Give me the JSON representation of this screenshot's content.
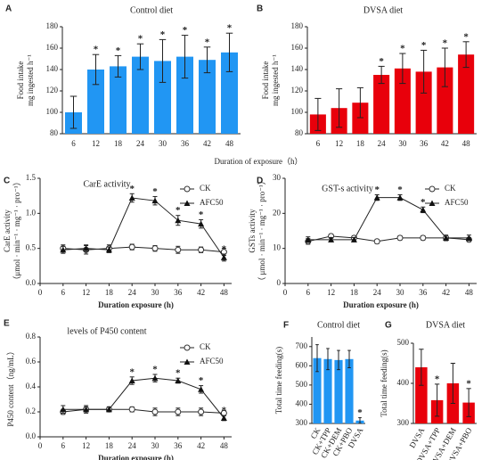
{
  "chart_data": [
    {
      "type": "bar",
      "panel": "A",
      "title": "Control diet",
      "ylabel": [
        "Food intake",
        "mg ingested h⁻¹"
      ],
      "categories": [
        "6",
        "12",
        "18",
        "24",
        "30",
        "36",
        "42",
        "48"
      ],
      "values": [
        100,
        140,
        143,
        152,
        148,
        152,
        149,
        156
      ],
      "errors": [
        15,
        14,
        10,
        12,
        20,
        20,
        12,
        18
      ],
      "color": "#2196f3",
      "ylim": [
        80,
        180
      ],
      "yticks": [
        80,
        100,
        120,
        140,
        160,
        180
      ],
      "stars": [
        null,
        "*",
        "*",
        "*",
        "*",
        "*",
        "*",
        "*"
      ]
    },
    {
      "type": "bar",
      "panel": "B",
      "title": "DVSA diet",
      "ylabel": [
        "Food intake",
        "mg ingested h⁻¹"
      ],
      "xlabel": "Duration of exposure（h）",
      "categories": [
        "6",
        "12",
        "18",
        "24",
        "30",
        "36",
        "42",
        "48"
      ],
      "values": [
        98,
        104,
        109,
        135,
        141,
        138,
        142,
        154
      ],
      "errors": [
        15,
        18,
        14,
        8,
        14,
        20,
        18,
        12
      ],
      "color": "#e8000b",
      "ylim": [
        80,
        180
      ],
      "yticks": [
        80,
        100,
        120,
        140,
        160,
        180
      ],
      "stars": [
        null,
        null,
        null,
        "*",
        "*",
        "*",
        "*",
        "*"
      ]
    },
    {
      "type": "line",
      "panel": "C",
      "title": "CarE activity",
      "ylabel": [
        "CarE activity",
        "（μmol · min⁻¹ · mg⁻¹ · pro⁻¹）"
      ],
      "xlabel": "Duration exposure (h)",
      "x": [
        6,
        12,
        18,
        24,
        30,
        36,
        42,
        48
      ],
      "xlim": [
        0,
        50
      ],
      "xticks": [
        0,
        6,
        12,
        18,
        24,
        30,
        36,
        42,
        48
      ],
      "ylim": [
        0,
        1.5
      ],
      "yticks": [
        {
          "value": 0,
          "label": "0.0"
        },
        0.5,
        {
          "value": 1,
          "label": "1.0"
        },
        1.5
      ],
      "series": [
        {
          "name": "CK",
          "marker": "circle-open",
          "values": [
            0.5,
            0.48,
            0.5,
            0.52,
            0.5,
            0.48,
            0.48,
            0.45
          ],
          "errors": [
            0.05,
            0.06,
            0.05,
            0.04,
            0.04,
            0.05,
            0.04,
            0.05
          ]
        },
        {
          "name": "AFC50",
          "marker": "triangle",
          "values": [
            0.48,
            0.5,
            0.48,
            1.22,
            1.18,
            0.9,
            0.85,
            0.37
          ],
          "errors": [
            0.05,
            0.05,
            0.04,
            0.06,
            0.06,
            0.07,
            0.06,
            0.05
          ]
        }
      ],
      "stars": [
        null,
        null,
        null,
        "*",
        "*",
        "*",
        "*",
        "*"
      ]
    },
    {
      "type": "line",
      "panel": "D",
      "title": "GST-s activity",
      "ylabel": [
        "GSTs activity",
        "（ μmol · min⁻¹ · mg⁻¹ · pro⁻¹）"
      ],
      "xlabel": "Duration exposure (h)",
      "x": [
        6,
        12,
        18,
        24,
        30,
        36,
        42,
        48
      ],
      "xlim": [
        0,
        50
      ],
      "xticks": [
        0,
        6,
        12,
        18,
        24,
        30,
        36,
        42,
        48
      ],
      "ylim": [
        0,
        30
      ],
      "yticks": [
        0,
        10,
        20,
        30
      ],
      "series": [
        {
          "name": "CK",
          "marker": "circle-open",
          "values": [
            12,
            13.5,
            13,
            12,
            13,
            13,
            13,
            12.5
          ],
          "errors": [
            0.8,
            0.6,
            0.6,
            0.6,
            0.6,
            0.6,
            0.6,
            0.6
          ]
        },
        {
          "name": "AFC50",
          "marker": "triangle",
          "values": [
            12.5,
            12.5,
            12.5,
            24.5,
            24.5,
            21,
            13,
            13
          ],
          "errors": [
            0.8,
            0.6,
            0.6,
            0.8,
            0.8,
            0.8,
            0.8,
            0.8
          ]
        }
      ],
      "stars": [
        null,
        null,
        null,
        "*",
        "*",
        "*",
        null,
        null
      ]
    },
    {
      "type": "line",
      "panel": "E",
      "title": "levels of P450 content",
      "ylabel": [
        "P450 content（ng/mL）"
      ],
      "xlabel": "Duration exposure (h)",
      "x": [
        6,
        12,
        18,
        24,
        30,
        36,
        42,
        48
      ],
      "xlim": [
        0,
        50
      ],
      "xticks": [
        0,
        6,
        12,
        18,
        24,
        30,
        36,
        42,
        48
      ],
      "ylim": [
        0,
        0.8
      ],
      "yticks": [
        {
          "value": 0,
          "label": "0.0"
        },
        0.2,
        0.4,
        0.6,
        0.8
      ],
      "series": [
        {
          "name": "CK",
          "marker": "circle-open",
          "values": [
            0.2,
            0.22,
            0.22,
            0.22,
            0.2,
            0.2,
            0.2,
            0.19
          ],
          "errors": [
            0.02,
            0.02,
            0.02,
            0.02,
            0.03,
            0.03,
            0.03,
            0.02
          ]
        },
        {
          "name": "AFC50",
          "marker": "triangle",
          "values": [
            0.22,
            0.22,
            0.22,
            0.45,
            0.47,
            0.45,
            0.38,
            0.15
          ],
          "errors": [
            0.03,
            0.03,
            0.02,
            0.03,
            0.03,
            0.02,
            0.03,
            0.02
          ]
        }
      ],
      "stars": [
        null,
        null,
        null,
        "*",
        "*",
        "*",
        "*",
        "*"
      ]
    },
    {
      "type": "bar",
      "panel": "F",
      "title": "Control diet",
      "ylabel": [
        "Total time feeding(s)"
      ],
      "categories": [
        "CK",
        "CK+TPP",
        "CK+DEM",
        "CK+PBO",
        "DVSA"
      ],
      "values": [
        640,
        635,
        630,
        635,
        315
      ],
      "errors": [
        70,
        55,
        50,
        45,
        15
      ],
      "color": "#2196f3",
      "ylim": [
        300,
        750
      ],
      "yticks": [
        300,
        400,
        500,
        600,
        700
      ],
      "stars": [
        null,
        null,
        null,
        null,
        "*"
      ]
    },
    {
      "type": "bar",
      "panel": "G",
      "title": "DVSA diet",
      "ylabel": [
        "Total time feeding(s)"
      ],
      "categories": [
        "DVSA",
        "DVSA+TPP",
        "DVSA+DEM",
        "DVSA+PBO"
      ],
      "values": [
        440,
        358,
        400,
        352
      ],
      "errors": [
        45,
        40,
        50,
        35
      ],
      "color": "#e8000b",
      "ylim": [
        300,
        500
      ],
      "yticks": [
        300,
        400,
        500
      ],
      "stars": [
        null,
        "*",
        null,
        "*"
      ]
    }
  ]
}
